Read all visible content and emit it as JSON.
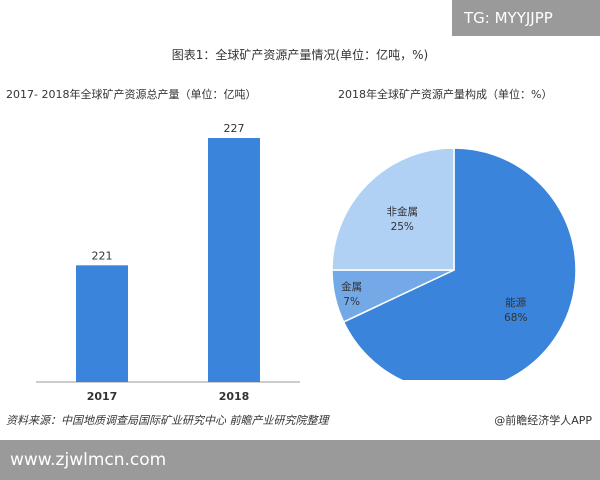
{
  "watermark_badge": "TG: MYYJJPP",
  "figure_title": "图表1：全球矿产资源产量情况(单位：亿吨，%)",
  "chart_data": [
    {
      "type": "bar",
      "title": "2017- 2018年全球矿产资源总产量（单位：亿吨）",
      "categories": [
        "2017",
        "2018"
      ],
      "values": [
        221,
        227
      ],
      "color": "#3b84db"
    },
    {
      "type": "pie",
      "title": "2018年全球矿产资源产量构成（单位：%）",
      "slices": [
        {
          "name": "能源",
          "value": 68,
          "label": "68%",
          "color": "#3b84db"
        },
        {
          "name": "金属",
          "value": 7,
          "label": "7%",
          "color": "#74a9e8"
        },
        {
          "name": "非金属",
          "value": 25,
          "label": "25%",
          "color": "#b0d0f4"
        }
      ]
    }
  ],
  "source_note": "资料来源：中国地质调查局国际矿业研究中心 前瞻产业研究院整理",
  "credit": "@前瞻经济学人APP",
  "footer_url": "www.zjwlmcn.com"
}
